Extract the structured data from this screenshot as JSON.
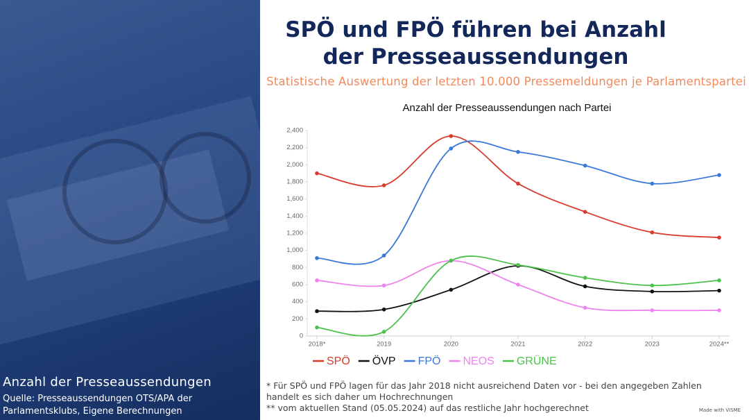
{
  "header": {
    "title": "SPÖ und FPÖ führen bei Anzahl der Presseaussendungen",
    "subtitle": "Statistische Auswertung der letzten 10.000 Pressemeldungen je Parlamentspartei"
  },
  "left": {
    "title": "Anzahl der Presseaussendungen",
    "source": "Quelle: Presseaussendungen OTS/APA der Parlamentsklubs, Eigene Berechnungen"
  },
  "footnotes": [
    "* Für SPÖ und FPÖ lagen für das Jahr 2018 nicht ausreichend Daten vor - bei den angegeben Zahlen handelt es sich daher um Hochrechnungen",
    "** vom aktuellen Stand (05.05.2024) auf das restliche Jahr hochgerechnet"
  ],
  "credit": "Made with VISME",
  "chart_data": {
    "type": "line",
    "title": "Anzahl der Presseaussendungen nach Partei",
    "categories": [
      "2018*",
      "2019",
      "2020",
      "2021",
      "2022",
      "2023",
      "2024**"
    ],
    "series": [
      {
        "name": "SPÖ",
        "color": "#d93a2b",
        "values": [
          1900,
          1760,
          2335,
          1780,
          1450,
          1210,
          1150
        ]
      },
      {
        "name": "ÖVP",
        "color": "#111111",
        "values": [
          290,
          310,
          540,
          820,
          580,
          520,
          530
        ]
      },
      {
        "name": "FPÖ",
        "color": "#3a78d8",
        "values": [
          910,
          940,
          2190,
          2150,
          1990,
          1780,
          1880
        ]
      },
      {
        "name": "NEOS",
        "color": "#ee82ee",
        "values": [
          650,
          590,
          880,
          600,
          330,
          300,
          300
        ]
      },
      {
        "name": "GRÜNE",
        "color": "#4cc24c",
        "values": [
          100,
          50,
          880,
          830,
          680,
          590,
          650
        ]
      }
    ],
    "ylim": [
      0,
      2400
    ],
    "yticks": [
      0,
      200,
      400,
      600,
      800,
      {
        "value": 1000,
        "label": "1,000"
      },
      {
        "value": 1200,
        "label": "1,200"
      },
      {
        "value": 1400,
        "label": "1,400"
      },
      {
        "value": 1600,
        "label": "1,600"
      },
      {
        "value": 1800,
        "label": "1,800"
      },
      {
        "value": 2000,
        "label": "2,000"
      },
      {
        "value": 2200,
        "label": "2,200"
      },
      {
        "value": 2400,
        "label": "2,400"
      }
    ],
    "grid": false,
    "smooth": true
  }
}
